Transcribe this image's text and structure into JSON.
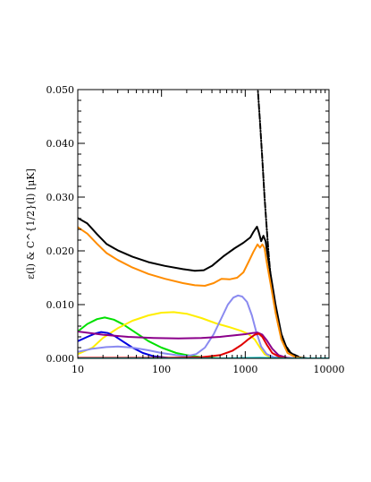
{
  "chart_data": {
    "type": "line",
    "title": "",
    "xlabel": "",
    "ylabel": "ε(l) & C^{1/2}(l) [μK]",
    "x_scale": "log",
    "xlim": [
      10,
      10000
    ],
    "ylim": [
      0,
      0.05
    ],
    "grid": false,
    "x_ticks": [
      {
        "value": 10,
        "label": "10"
      },
      {
        "value": 100,
        "label": "100"
      },
      {
        "value": 1000,
        "label": "1000"
      },
      {
        "value": 10000,
        "label": "10000"
      }
    ],
    "y_ticks": [
      {
        "value": 0.0,
        "label": "0.000"
      },
      {
        "value": 0.01,
        "label": "0.010"
      },
      {
        "value": 0.02,
        "label": "0.020"
      },
      {
        "value": 0.03,
        "label": "0.030"
      },
      {
        "value": 0.04,
        "label": "0.040"
      },
      {
        "value": 0.05,
        "label": "0.050"
      }
    ],
    "series": [
      {
        "color": "#000000",
        "dash": "none",
        "points": [
          [
            10,
            0.0261
          ],
          [
            13,
            0.0251
          ],
          [
            17,
            0.0231
          ],
          [
            22,
            0.0213
          ],
          [
            30,
            0.0201
          ],
          [
            45,
            0.0189
          ],
          [
            70,
            0.0179
          ],
          [
            110,
            0.0172
          ],
          [
            180,
            0.0166
          ],
          [
            250,
            0.0163
          ],
          [
            320,
            0.0164
          ],
          [
            400,
            0.0172
          ],
          [
            550,
            0.019
          ],
          [
            750,
            0.0205
          ],
          [
            950,
            0.0215
          ],
          [
            1150,
            0.0225
          ],
          [
            1250,
            0.0235
          ],
          [
            1380,
            0.0245
          ],
          [
            1450,
            0.0235
          ],
          [
            1550,
            0.0218
          ],
          [
            1650,
            0.0228
          ],
          [
            1750,
            0.0218
          ],
          [
            1850,
            0.0192
          ],
          [
            2000,
            0.0158
          ],
          [
            2300,
            0.01
          ],
          [
            2700,
            0.0045
          ],
          [
            3200,
            0.0015
          ],
          [
            4000,
            0.0003
          ],
          [
            5000,
            0.0
          ],
          [
            10000,
            0.0
          ]
        ]
      },
      {
        "color": "#000000",
        "dash": "6 2 1 2",
        "points": [
          [
            1400,
            0.051
          ],
          [
            1500,
            0.044
          ],
          [
            1600,
            0.037
          ],
          [
            1700,
            0.03
          ],
          [
            1800,
            0.0245
          ],
          [
            1900,
            0.0195
          ],
          [
            2000,
            0.0155
          ],
          [
            2200,
            0.0105
          ],
          [
            2500,
            0.006
          ],
          [
            3000,
            0.0025
          ],
          [
            3500,
            0.001
          ],
          [
            4500,
            0.0002
          ],
          [
            5500,
            0.0
          ],
          [
            10000,
            0.0
          ]
        ]
      },
      {
        "color": "#ff8c00",
        "dash": "none",
        "points": [
          [
            10,
            0.0244
          ],
          [
            13,
            0.0232
          ],
          [
            17,
            0.0213
          ],
          [
            22,
            0.0196
          ],
          [
            30,
            0.0183
          ],
          [
            45,
            0.0169
          ],
          [
            70,
            0.0157
          ],
          [
            110,
            0.0148
          ],
          [
            180,
            0.014
          ],
          [
            250,
            0.0136
          ],
          [
            330,
            0.0135
          ],
          [
            420,
            0.014
          ],
          [
            520,
            0.0148
          ],
          [
            650,
            0.0147
          ],
          [
            800,
            0.015
          ],
          [
            950,
            0.016
          ],
          [
            1100,
            0.018
          ],
          [
            1250,
            0.0198
          ],
          [
            1400,
            0.0212
          ],
          [
            1500,
            0.0206
          ],
          [
            1600,
            0.0212
          ],
          [
            1700,
            0.0205
          ],
          [
            1800,
            0.018
          ],
          [
            2000,
            0.014
          ],
          [
            2300,
            0.0085
          ],
          [
            2700,
            0.0035
          ],
          [
            3200,
            0.001
          ],
          [
            4000,
            0.0002
          ],
          [
            5000,
            0.0
          ],
          [
            10000,
            0.0
          ]
        ]
      },
      {
        "color": "#00e000",
        "dash": "none",
        "points": [
          [
            10,
            0.005
          ],
          [
            13,
            0.0064
          ],
          [
            17,
            0.0073
          ],
          [
            21,
            0.0076
          ],
          [
            27,
            0.0072
          ],
          [
            35,
            0.0063
          ],
          [
            50,
            0.0047
          ],
          [
            70,
            0.0032
          ],
          [
            100,
            0.002
          ],
          [
            150,
            0.001
          ],
          [
            200,
            0.0006
          ],
          [
            300,
            0.0002
          ],
          [
            500,
            0.0
          ],
          [
            10000,
            0.0
          ]
        ]
      },
      {
        "color": "#ffee00",
        "dash": "none",
        "points": [
          [
            10,
            0.0008
          ],
          [
            15,
            0.002
          ],
          [
            20,
            0.0038
          ],
          [
            30,
            0.0056
          ],
          [
            45,
            0.007
          ],
          [
            70,
            0.008
          ],
          [
            100,
            0.0085
          ],
          [
            140,
            0.0086
          ],
          [
            200,
            0.0083
          ],
          [
            300,
            0.0075
          ],
          [
            450,
            0.0065
          ],
          [
            650,
            0.0058
          ],
          [
            900,
            0.0051
          ],
          [
            1100,
            0.0045
          ],
          [
            1300,
            0.0035
          ],
          [
            1500,
            0.002
          ],
          [
            1700,
            0.0008
          ],
          [
            2000,
            0.0002
          ],
          [
            2500,
            0.0
          ],
          [
            10000,
            0.0
          ]
        ]
      },
      {
        "color": "#0000e0",
        "dash": "none",
        "points": [
          [
            10,
            0.0032
          ],
          [
            13,
            0.004
          ],
          [
            16,
            0.0046
          ],
          [
            19,
            0.0049
          ],
          [
            23,
            0.0047
          ],
          [
            28,
            0.0041
          ],
          [
            35,
            0.0031
          ],
          [
            45,
            0.002
          ],
          [
            60,
            0.001
          ],
          [
            80,
            0.0004
          ],
          [
            120,
            0.0001
          ],
          [
            200,
            0.0
          ],
          [
            10000,
            0.0
          ]
        ]
      },
      {
        "color": "#8a8af0",
        "dash": "none",
        "points": [
          [
            10,
            0.0012
          ],
          [
            15,
            0.0018
          ],
          [
            22,
            0.0021
          ],
          [
            30,
            0.0022
          ],
          [
            45,
            0.002
          ],
          [
            70,
            0.0015
          ],
          [
            100,
            0.001
          ],
          [
            150,
            0.0006
          ],
          [
            200,
            0.0004
          ],
          [
            260,
            0.0008
          ],
          [
            330,
            0.002
          ],
          [
            420,
            0.0045
          ],
          [
            520,
            0.0075
          ],
          [
            620,
            0.01
          ],
          [
            720,
            0.0113
          ],
          [
            820,
            0.0117
          ],
          [
            920,
            0.0115
          ],
          [
            1050,
            0.0105
          ],
          [
            1200,
            0.008
          ],
          [
            1350,
            0.005
          ],
          [
            1550,
            0.0022
          ],
          [
            1800,
            0.0008
          ],
          [
            2200,
            0.0002
          ],
          [
            3000,
            0.0
          ],
          [
            10000,
            0.0
          ]
        ]
      },
      {
        "color": "#8b008b",
        "dash": "none",
        "points": [
          [
            10,
            0.005
          ],
          [
            20,
            0.0044
          ],
          [
            40,
            0.004
          ],
          [
            80,
            0.0038
          ],
          [
            160,
            0.0037
          ],
          [
            300,
            0.0038
          ],
          [
            500,
            0.004
          ],
          [
            750,
            0.0043
          ],
          [
            1000,
            0.0045
          ],
          [
            1200,
            0.0047
          ],
          [
            1400,
            0.0048
          ],
          [
            1600,
            0.0044
          ],
          [
            1800,
            0.0034
          ],
          [
            2100,
            0.0018
          ],
          [
            2500,
            0.0006
          ],
          [
            3200,
            0.0001
          ],
          [
            4000,
            0.0
          ],
          [
            10000,
            0.0
          ]
        ]
      },
      {
        "color": "#e00000",
        "dash": "none",
        "points": [
          [
            10,
            0.0001
          ],
          [
            100,
            0.0001
          ],
          [
            300,
            0.0002
          ],
          [
            500,
            0.0006
          ],
          [
            700,
            0.0014
          ],
          [
            900,
            0.0025
          ],
          [
            1100,
            0.0036
          ],
          [
            1300,
            0.0044
          ],
          [
            1450,
            0.0046
          ],
          [
            1600,
            0.004
          ],
          [
            1800,
            0.0026
          ],
          [
            2100,
            0.001
          ],
          [
            2600,
            0.0002
          ],
          [
            3200,
            0.0
          ],
          [
            10000,
            0.0
          ]
        ]
      },
      {
        "color": "#00b8b8",
        "dash": "none",
        "points": [
          [
            10,
            0.0
          ],
          [
            100,
            0.0
          ],
          [
            500,
            0.0
          ],
          [
            1500,
            0.0001
          ],
          [
            3000,
            0.0
          ],
          [
            10000,
            0.0
          ]
        ]
      }
    ]
  }
}
